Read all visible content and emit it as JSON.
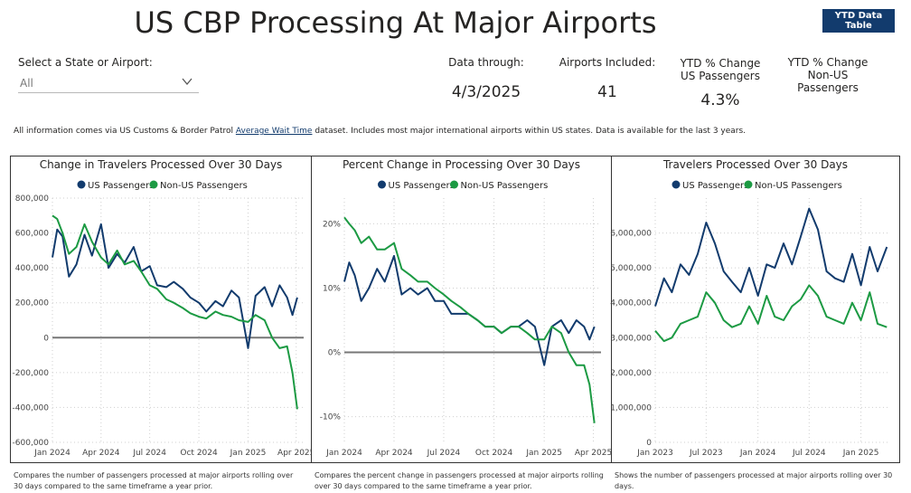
{
  "header": {
    "title": "US CBP Processing At Major Airports",
    "ytd_button": "YTD Data Table"
  },
  "slicer": {
    "label": "Select a State or Airport:",
    "value": "All"
  },
  "kpis": {
    "data_through_label": "Data through:",
    "data_through_value": "4/3/2025",
    "airports_label": "Airports Included:",
    "airports_value": "41",
    "ytd_us_label_1": "YTD % Change",
    "ytd_us_label_2": "US Passengers",
    "ytd_us_value": "4.3%",
    "ytd_non_us_label_1": "YTD % Change",
    "ytd_non_us_label_2": "Non-US",
    "ytd_non_us_label_3": "Passengers"
  },
  "info": {
    "prefix": "All information comes via US Customs & Border Patrol ",
    "link": "Average Wait Time",
    "suffix": " dataset. Includes most major international airports within US states. Data is available for the last 3 years."
  },
  "colors": {
    "us": "#123b6d",
    "non_us": "#1c9a43",
    "zero_line": "#777777",
    "grid": "#cfcfcf"
  },
  "descriptions": {
    "chart1": "Compares the number of passengers processed at major airports rolling over 30 days compared to the same timeframe a year prior.",
    "chart2": "Compares the percent change in passengers processed at major airports rolling over 30 days compared to the same timeframe a year prior.",
    "chart3": "Shows the number of passengers processed at major airports rolling over 30 days."
  },
  "chart_data": [
    {
      "type": "line",
      "title": "Change in Travelers Processed Over 30 Days",
      "xlim": [
        "2024-01-01",
        "2025-04-15"
      ],
      "ylim": [
        -600000,
        800000
      ],
      "yticks": [
        -600000,
        -400000,
        -200000,
        0,
        200000,
        400000,
        600000,
        800000
      ],
      "ytick_labels": [
        "-600,000",
        "-400,000",
        "-200,000",
        "0",
        "200,000",
        "400,000",
        "600,000",
        "800,000"
      ],
      "xticks": [
        "2024-01-01",
        "2024-04-01",
        "2024-07-01",
        "2024-10-01",
        "2025-01-01",
        "2025-04-01"
      ],
      "xtick_labels": [
        "Jan 2024",
        "Apr 2024",
        "Jul 2024",
        "Oct 2024",
        "Jan 2025",
        "Apr 2025"
      ],
      "legend": "top-center",
      "grid": true,
      "series": [
        {
          "name": "US Passengers",
          "x": [
            "2024-01-01",
            "2024-01-10",
            "2024-01-20",
            "2024-02-01",
            "2024-02-15",
            "2024-03-01",
            "2024-03-15",
            "2024-04-01",
            "2024-04-15",
            "2024-05-01",
            "2024-05-15",
            "2024-06-01",
            "2024-06-15",
            "2024-07-01",
            "2024-07-15",
            "2024-08-01",
            "2024-08-15",
            "2024-09-01",
            "2024-09-15",
            "2024-10-01",
            "2024-10-15",
            "2024-11-01",
            "2024-11-15",
            "2024-12-01",
            "2024-12-15",
            "2025-01-01",
            "2025-01-15",
            "2025-02-01",
            "2025-02-15",
            "2025-03-01",
            "2025-03-15",
            "2025-03-25",
            "2025-04-03"
          ],
          "values": [
            460000,
            620000,
            580000,
            350000,
            420000,
            590000,
            470000,
            650000,
            400000,
            480000,
            430000,
            520000,
            380000,
            410000,
            300000,
            290000,
            320000,
            280000,
            230000,
            200000,
            150000,
            210000,
            180000,
            270000,
            230000,
            -60000,
            240000,
            290000,
            180000,
            300000,
            230000,
            130000,
            230000
          ]
        },
        {
          "name": "Non-US Passengers",
          "x": [
            "2024-01-01",
            "2024-01-10",
            "2024-01-20",
            "2024-02-01",
            "2024-02-15",
            "2024-03-01",
            "2024-03-15",
            "2024-04-01",
            "2024-04-15",
            "2024-05-01",
            "2024-05-15",
            "2024-06-01",
            "2024-06-15",
            "2024-07-01",
            "2024-07-15",
            "2024-08-01",
            "2024-08-15",
            "2024-09-01",
            "2024-09-15",
            "2024-10-01",
            "2024-10-15",
            "2024-11-01",
            "2024-11-15",
            "2024-12-01",
            "2024-12-15",
            "2025-01-01",
            "2025-01-15",
            "2025-02-01",
            "2025-02-15",
            "2025-03-01",
            "2025-03-15",
            "2025-03-25",
            "2025-04-03"
          ],
          "values": [
            700000,
            680000,
            600000,
            480000,
            520000,
            650000,
            550000,
            460000,
            420000,
            500000,
            420000,
            440000,
            380000,
            300000,
            280000,
            220000,
            200000,
            170000,
            140000,
            120000,
            110000,
            150000,
            130000,
            120000,
            100000,
            90000,
            130000,
            100000,
            0,
            -60000,
            -50000,
            -200000,
            -410000
          ]
        }
      ]
    },
    {
      "type": "line",
      "title": "Percent Change in Processing Over 30 Days",
      "xlim": [
        "2024-01-01",
        "2025-04-15"
      ],
      "ylim": [
        -14,
        24
      ],
      "yticks": [
        -10,
        0,
        10,
        20
      ],
      "ytick_labels": [
        "-10%",
        "0%",
        "10%",
        "20%"
      ],
      "xticks": [
        "2024-01-01",
        "2024-04-01",
        "2024-07-01",
        "2024-10-01",
        "2025-01-01",
        "2025-04-01"
      ],
      "xtick_labels": [
        "Jan 2024",
        "Apr 2024",
        "Jul 2024",
        "Oct 2024",
        "Jan 2025",
        "Apr 2025"
      ],
      "legend": "top-center",
      "grid": true,
      "series": [
        {
          "name": "US Passengers",
          "x": [
            "2024-01-01",
            "2024-01-10",
            "2024-01-20",
            "2024-02-01",
            "2024-02-15",
            "2024-03-01",
            "2024-03-15",
            "2024-04-01",
            "2024-04-15",
            "2024-05-01",
            "2024-05-15",
            "2024-06-01",
            "2024-06-15",
            "2024-07-01",
            "2024-07-15",
            "2024-08-01",
            "2024-08-15",
            "2024-09-01",
            "2024-09-15",
            "2024-10-01",
            "2024-10-15",
            "2024-11-01",
            "2024-11-15",
            "2024-12-01",
            "2024-12-15",
            "2025-01-01",
            "2025-01-15",
            "2025-02-01",
            "2025-02-15",
            "2025-03-01",
            "2025-03-15",
            "2025-03-25",
            "2025-04-03"
          ],
          "values": [
            11,
            14,
            12,
            8,
            10,
            13,
            11,
            15,
            9,
            10,
            9,
            10,
            8,
            8,
            6,
            6,
            6,
            5,
            4,
            4,
            3,
            4,
            4,
            5,
            4,
            -2,
            4,
            5,
            3,
            5,
            4,
            2,
            4
          ]
        },
        {
          "name": "Non-US Passengers",
          "x": [
            "2024-01-01",
            "2024-01-10",
            "2024-01-20",
            "2024-02-01",
            "2024-02-15",
            "2024-03-01",
            "2024-03-15",
            "2024-04-01",
            "2024-04-15",
            "2024-05-01",
            "2024-05-15",
            "2024-06-01",
            "2024-06-15",
            "2024-07-01",
            "2024-07-15",
            "2024-08-01",
            "2024-08-15",
            "2024-09-01",
            "2024-09-15",
            "2024-10-01",
            "2024-10-15",
            "2024-11-01",
            "2024-11-15",
            "2024-12-01",
            "2024-12-15",
            "2025-01-01",
            "2025-01-15",
            "2025-02-01",
            "2025-02-15",
            "2025-03-01",
            "2025-03-15",
            "2025-03-25",
            "2025-04-03"
          ],
          "values": [
            21,
            20,
            19,
            17,
            18,
            16,
            16,
            17,
            13,
            12,
            11,
            11,
            10,
            9,
            8,
            7,
            6,
            5,
            4,
            4,
            3,
            4,
            4,
            3,
            2,
            2,
            4,
            3,
            0,
            -2,
            -2,
            -5,
            -11
          ]
        }
      ]
    },
    {
      "type": "line",
      "title": "Travelers Processed Over 30 Days",
      "xlim": [
        "2023-01-01",
        "2025-04-15"
      ],
      "ylim": [
        0,
        7000000
      ],
      "yticks": [
        0,
        1000000,
        2000000,
        3000000,
        4000000,
        5000000,
        6000000
      ],
      "ytick_labels": [
        "0",
        "1,000,000",
        "2,000,000",
        "3,000,000",
        "4,000,000",
        "5,000,000",
        "6,000,000"
      ],
      "xticks": [
        "2023-01-01",
        "2023-07-01",
        "2024-01-01",
        "2024-07-01",
        "2025-01-01"
      ],
      "xtick_labels": [
        "Jan 2023",
        "Jul 2023",
        "Jan 2024",
        "Jul 2024",
        "Jan 2025"
      ],
      "legend": "top-center",
      "grid": true,
      "series": [
        {
          "name": "US Passengers",
          "x": [
            "2023-01-01",
            "2023-02-01",
            "2023-03-01",
            "2023-04-01",
            "2023-05-01",
            "2023-06-01",
            "2023-07-01",
            "2023-08-01",
            "2023-09-01",
            "2023-10-01",
            "2023-11-01",
            "2023-12-01",
            "2024-01-01",
            "2024-02-01",
            "2024-03-01",
            "2024-04-01",
            "2024-05-01",
            "2024-06-01",
            "2024-07-01",
            "2024-08-01",
            "2024-09-01",
            "2024-10-01",
            "2024-11-01",
            "2024-12-01",
            "2025-01-01",
            "2025-02-01",
            "2025-03-01",
            "2025-04-03"
          ],
          "values": [
            3900000,
            4700000,
            4300000,
            5100000,
            4800000,
            5400000,
            6300000,
            5700000,
            4900000,
            4600000,
            4300000,
            5000000,
            4200000,
            5100000,
            5000000,
            5700000,
            5100000,
            5900000,
            6700000,
            6100000,
            4900000,
            4700000,
            4600000,
            5400000,
            4500000,
            5600000,
            4900000,
            5600000
          ]
        },
        {
          "name": "Non-US Passengers",
          "x": [
            "2023-01-01",
            "2023-02-01",
            "2023-03-01",
            "2023-04-01",
            "2023-05-01",
            "2023-06-01",
            "2023-07-01",
            "2023-08-01",
            "2023-09-01",
            "2023-10-01",
            "2023-11-01",
            "2023-12-01",
            "2024-01-01",
            "2024-02-01",
            "2024-03-01",
            "2024-04-01",
            "2024-05-01",
            "2024-06-01",
            "2024-07-01",
            "2024-08-01",
            "2024-09-01",
            "2024-10-01",
            "2024-11-01",
            "2024-12-01",
            "2025-01-01",
            "2025-02-01",
            "2025-03-01",
            "2025-04-03"
          ],
          "values": [
            3200000,
            2900000,
            3000000,
            3400000,
            3500000,
            3600000,
            4300000,
            4000000,
            3500000,
            3300000,
            3400000,
            3900000,
            3400000,
            4200000,
            3600000,
            3500000,
            3900000,
            4100000,
            4500000,
            4200000,
            3600000,
            3500000,
            3400000,
            4000000,
            3500000,
            4300000,
            3400000,
            3300000
          ]
        }
      ]
    }
  ]
}
